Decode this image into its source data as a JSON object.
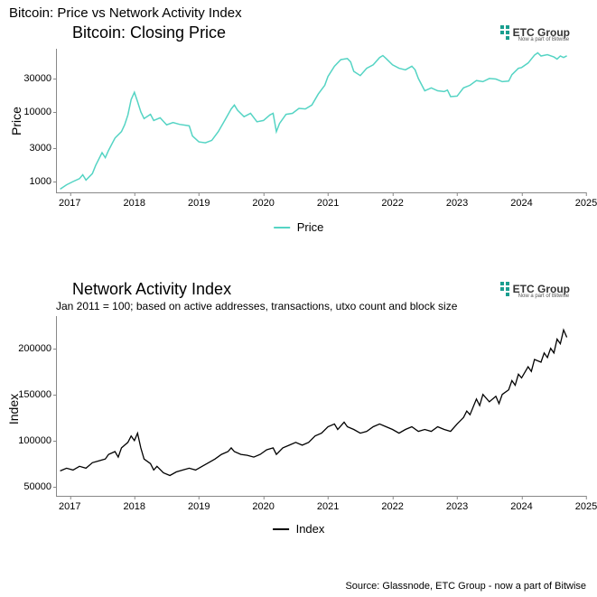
{
  "main_title": "Bitcoin: Price vs Network Activity Index",
  "source_text": "Source: Glassnode, ETC Group - now a part of Bitwise",
  "logo": {
    "text": "ETC Group",
    "subtext": "Now a part of Bitwise",
    "mark_color": "#1a9e8f"
  },
  "chart1": {
    "type": "line",
    "title": "Bitcoin: Closing Price",
    "ylabel": "Price",
    "yscale": "log",
    "line_color": "#55d4c4",
    "line_width": 1.5,
    "background_color": "#ffffff",
    "border_color": "#888888",
    "tick_fontsize": 11,
    "title_fontsize": 18,
    "label_fontsize": 14,
    "xlim": [
      2016.8,
      2025.0
    ],
    "ylim_log": [
      700,
      80000
    ],
    "y_ticks": [
      1000,
      3000,
      10000,
      30000
    ],
    "x_ticks": [
      2017,
      2018,
      2019,
      2020,
      2021,
      2022,
      2023,
      2024,
      2025
    ],
    "legend_label": "Price",
    "legend_color": "#55d4c4",
    "data": [
      [
        2016.85,
        780
      ],
      [
        2016.95,
        900
      ],
      [
        2017.05,
        1000
      ],
      [
        2017.15,
        1100
      ],
      [
        2017.2,
        1250
      ],
      [
        2017.25,
        1050
      ],
      [
        2017.35,
        1300
      ],
      [
        2017.4,
        1700
      ],
      [
        2017.5,
        2600
      ],
      [
        2017.55,
        2200
      ],
      [
        2017.6,
        2800
      ],
      [
        2017.7,
        4200
      ],
      [
        2017.8,
        5200
      ],
      [
        2017.85,
        6500
      ],
      [
        2017.9,
        9000
      ],
      [
        2017.95,
        15000
      ],
      [
        2018.0,
        19000
      ],
      [
        2018.05,
        14000
      ],
      [
        2018.1,
        10000
      ],
      [
        2018.15,
        8000
      ],
      [
        2018.25,
        9200
      ],
      [
        2018.3,
        7500
      ],
      [
        2018.4,
        8200
      ],
      [
        2018.5,
        6500
      ],
      [
        2018.6,
        7000
      ],
      [
        2018.7,
        6600
      ],
      [
        2018.8,
        6400
      ],
      [
        2018.85,
        6300
      ],
      [
        2018.9,
        4500
      ],
      [
        2019.0,
        3700
      ],
      [
        2019.1,
        3600
      ],
      [
        2019.2,
        3900
      ],
      [
        2019.3,
        5200
      ],
      [
        2019.4,
        7500
      ],
      [
        2019.5,
        11000
      ],
      [
        2019.55,
        12500
      ],
      [
        2019.6,
        10500
      ],
      [
        2019.7,
        8500
      ],
      [
        2019.8,
        9500
      ],
      [
        2019.9,
        7200
      ],
      [
        2020.0,
        7500
      ],
      [
        2020.1,
        9000
      ],
      [
        2020.15,
        9500
      ],
      [
        2020.2,
        5200
      ],
      [
        2020.25,
        6800
      ],
      [
        2020.35,
        9200
      ],
      [
        2020.45,
        9500
      ],
      [
        2020.55,
        11200
      ],
      [
        2020.65,
        11000
      ],
      [
        2020.75,
        12500
      ],
      [
        2020.85,
        18000
      ],
      [
        2020.95,
        24000
      ],
      [
        2021.0,
        32000
      ],
      [
        2021.1,
        45000
      ],
      [
        2021.2,
        56000
      ],
      [
        2021.3,
        58000
      ],
      [
        2021.35,
        52000
      ],
      [
        2021.4,
        38000
      ],
      [
        2021.5,
        33000
      ],
      [
        2021.6,
        42000
      ],
      [
        2021.7,
        47000
      ],
      [
        2021.8,
        60000
      ],
      [
        2021.85,
        64000
      ],
      [
        2021.9,
        58000
      ],
      [
        2022.0,
        47000
      ],
      [
        2022.1,
        42000
      ],
      [
        2022.2,
        40000
      ],
      [
        2022.3,
        45000
      ],
      [
        2022.35,
        40000
      ],
      [
        2022.4,
        30000
      ],
      [
        2022.5,
        20000
      ],
      [
        2022.6,
        22000
      ],
      [
        2022.7,
        20000
      ],
      [
        2022.8,
        19500
      ],
      [
        2022.85,
        20500
      ],
      [
        2022.9,
        16500
      ],
      [
        2023.0,
        16800
      ],
      [
        2023.1,
        22000
      ],
      [
        2023.2,
        24000
      ],
      [
        2023.3,
        28000
      ],
      [
        2023.4,
        27000
      ],
      [
        2023.5,
        30000
      ],
      [
        2023.6,
        29500
      ],
      [
        2023.7,
        27000
      ],
      [
        2023.8,
        27500
      ],
      [
        2023.85,
        34000
      ],
      [
        2023.95,
        42000
      ],
      [
        2024.0,
        43000
      ],
      [
        2024.1,
        50000
      ],
      [
        2024.2,
        65000
      ],
      [
        2024.25,
        70000
      ],
      [
        2024.3,
        63000
      ],
      [
        2024.4,
        66000
      ],
      [
        2024.5,
        61000
      ],
      [
        2024.55,
        57000
      ],
      [
        2024.6,
        63000
      ],
      [
        2024.65,
        60000
      ],
      [
        2024.7,
        63500
      ]
    ]
  },
  "chart2": {
    "type": "line",
    "title": "Network Activity Index",
    "subtitle": "Jan 2011 = 100; based on active addresses, transactions, utxo count and block size",
    "ylabel": "Index",
    "yscale": "linear",
    "line_color": "#000000",
    "line_width": 1.3,
    "background_color": "#ffffff",
    "border_color": "#888888",
    "tick_fontsize": 11,
    "title_fontsize": 18,
    "label_fontsize": 14,
    "xlim": [
      2016.8,
      2025.0
    ],
    "ylim": [
      40000,
      235000
    ],
    "y_ticks": [
      50000,
      100000,
      150000,
      200000
    ],
    "x_ticks": [
      2017,
      2018,
      2019,
      2020,
      2021,
      2022,
      2023,
      2024,
      2025
    ],
    "legend_label": "Index",
    "legend_color": "#000000",
    "data": [
      [
        2016.85,
        67000
      ],
      [
        2016.95,
        70000
      ],
      [
        2017.05,
        68000
      ],
      [
        2017.15,
        72000
      ],
      [
        2017.25,
        70000
      ],
      [
        2017.35,
        76000
      ],
      [
        2017.45,
        78000
      ],
      [
        2017.55,
        80000
      ],
      [
        2017.6,
        85000
      ],
      [
        2017.7,
        88000
      ],
      [
        2017.75,
        82000
      ],
      [
        2017.8,
        92000
      ],
      [
        2017.85,
        95000
      ],
      [
        2017.9,
        98000
      ],
      [
        2017.95,
        105000
      ],
      [
        2018.0,
        100000
      ],
      [
        2018.05,
        108000
      ],
      [
        2018.1,
        92000
      ],
      [
        2018.15,
        80000
      ],
      [
        2018.25,
        75000
      ],
      [
        2018.3,
        68000
      ],
      [
        2018.35,
        72000
      ],
      [
        2018.45,
        65000
      ],
      [
        2018.55,
        62000
      ],
      [
        2018.65,
        66000
      ],
      [
        2018.75,
        68000
      ],
      [
        2018.85,
        70000
      ],
      [
        2018.95,
        68000
      ],
      [
        2019.05,
        72000
      ],
      [
        2019.15,
        76000
      ],
      [
        2019.25,
        80000
      ],
      [
        2019.35,
        85000
      ],
      [
        2019.45,
        88000
      ],
      [
        2019.5,
        92000
      ],
      [
        2019.55,
        88000
      ],
      [
        2019.65,
        85000
      ],
      [
        2019.75,
        84000
      ],
      [
        2019.85,
        82000
      ],
      [
        2019.95,
        85000
      ],
      [
        2020.05,
        90000
      ],
      [
        2020.15,
        92000
      ],
      [
        2020.2,
        85000
      ],
      [
        2020.3,
        92000
      ],
      [
        2020.4,
        95000
      ],
      [
        2020.5,
        98000
      ],
      [
        2020.6,
        95000
      ],
      [
        2020.7,
        98000
      ],
      [
        2020.8,
        105000
      ],
      [
        2020.9,
        108000
      ],
      [
        2021.0,
        115000
      ],
      [
        2021.1,
        118000
      ],
      [
        2021.15,
        112000
      ],
      [
        2021.25,
        120000
      ],
      [
        2021.3,
        115000
      ],
      [
        2021.4,
        112000
      ],
      [
        2021.5,
        108000
      ],
      [
        2021.6,
        110000
      ],
      [
        2021.7,
        115000
      ],
      [
        2021.8,
        118000
      ],
      [
        2021.9,
        115000
      ],
      [
        2022.0,
        112000
      ],
      [
        2022.1,
        108000
      ],
      [
        2022.2,
        112000
      ],
      [
        2022.3,
        115000
      ],
      [
        2022.4,
        110000
      ],
      [
        2022.5,
        112000
      ],
      [
        2022.6,
        110000
      ],
      [
        2022.7,
        115000
      ],
      [
        2022.8,
        112000
      ],
      [
        2022.9,
        110000
      ],
      [
        2023.0,
        118000
      ],
      [
        2023.1,
        125000
      ],
      [
        2023.15,
        132000
      ],
      [
        2023.2,
        128000
      ],
      [
        2023.3,
        145000
      ],
      [
        2023.35,
        138000
      ],
      [
        2023.4,
        150000
      ],
      [
        2023.5,
        142000
      ],
      [
        2023.6,
        148000
      ],
      [
        2023.65,
        140000
      ],
      [
        2023.7,
        150000
      ],
      [
        2023.8,
        155000
      ],
      [
        2023.85,
        165000
      ],
      [
        2023.9,
        160000
      ],
      [
        2023.95,
        172000
      ],
      [
        2024.0,
        168000
      ],
      [
        2024.1,
        180000
      ],
      [
        2024.15,
        175000
      ],
      [
        2024.2,
        188000
      ],
      [
        2024.3,
        185000
      ],
      [
        2024.35,
        195000
      ],
      [
        2024.4,
        190000
      ],
      [
        2024.45,
        200000
      ],
      [
        2024.5,
        195000
      ],
      [
        2024.55,
        210000
      ],
      [
        2024.6,
        205000
      ],
      [
        2024.65,
        220000
      ],
      [
        2024.7,
        212000
      ]
    ]
  }
}
